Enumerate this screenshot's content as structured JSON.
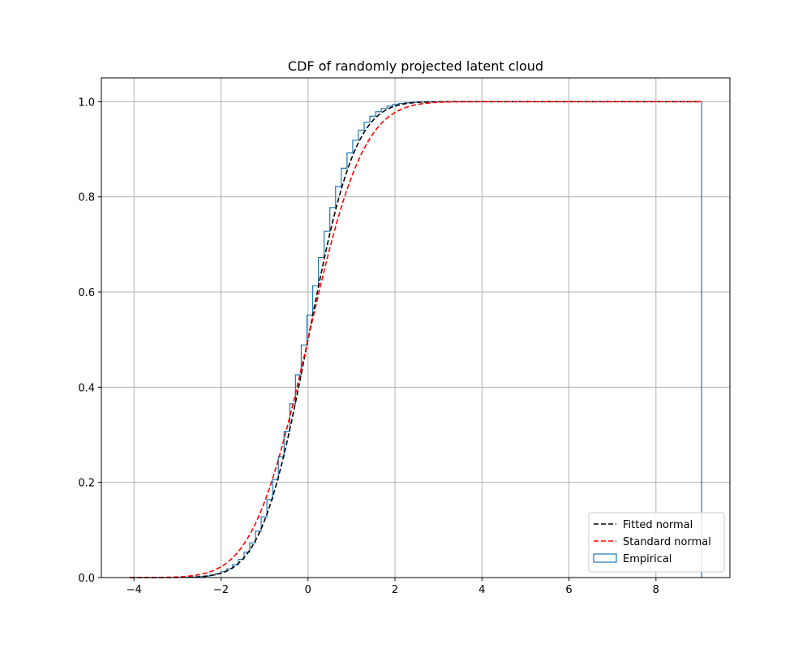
{
  "chart_data": {
    "type": "line",
    "title": "CDF of randomly projected latent cloud",
    "xlabel": "",
    "ylabel": "",
    "xlim": [
      -4.75,
      9.7
    ],
    "ylim": [
      0,
      1.05
    ],
    "x_ticks": [
      -4,
      -2,
      0,
      2,
      4,
      6,
      8
    ],
    "x_tick_labels": [
      "−4",
      "−2",
      "0",
      "2",
      "4",
      "6",
      "8"
    ],
    "y_ticks": [
      0.0,
      0.2,
      0.4,
      0.6,
      0.8,
      1.0
    ],
    "y_tick_labels": [
      "0.0",
      "0.2",
      "0.4",
      "0.6",
      "0.8",
      "1.0"
    ],
    "grid": true,
    "legend_position": "lower-right",
    "x_range_drawn": [
      -4.1,
      9.05
    ],
    "series": [
      {
        "name": "Fitted normal",
        "kind": "normal_cdf",
        "mean": 0.0,
        "std": 0.85,
        "color": "#000000",
        "linestyle": "dashed"
      },
      {
        "name": "Standard normal",
        "kind": "normal_cdf",
        "mean": 0.0,
        "std": 1.0,
        "color": "#ff0000",
        "linestyle": "dashed"
      },
      {
        "name": "Empirical",
        "kind": "step_histogram",
        "color": "#1f77b4",
        "bin_width": 0.1315,
        "first_edge": -4.1,
        "last_edge": 9.05,
        "mean": 0.0,
        "std": 0.83
      }
    ]
  }
}
